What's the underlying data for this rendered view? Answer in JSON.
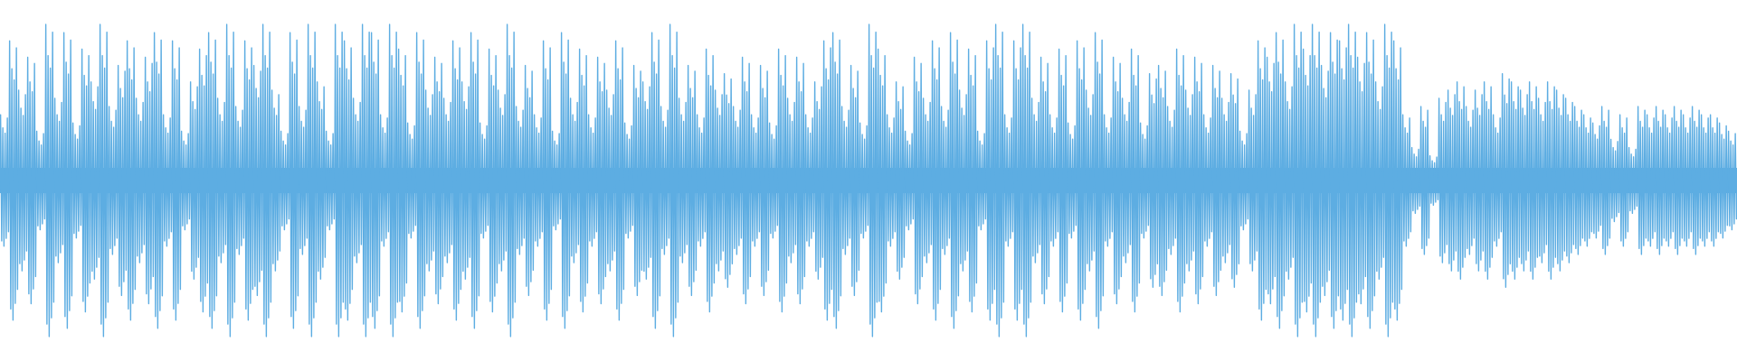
{
  "chart_data": {
    "type": "waveform",
    "color": "#5dade2",
    "values": [
      0.4,
      0.85,
      0.55,
      0.75,
      0.3,
      0.95,
      0.5,
      0.9,
      0.35,
      0.8,
      0.6,
      0.95,
      0.45,
      0.7,
      0.85,
      0.5,
      0.75,
      0.9,
      0.4,
      0.85,
      0.3,
      0.6,
      0.8,
      0.9,
      0.5,
      0.95,
      0.45,
      0.85,
      0.7,
      0.95,
      0.55,
      0.3,
      0.9,
      0.45,
      0.95,
      0.6,
      0.3,
      0.95,
      0.85,
      0.5,
      0.95,
      0.9,
      0.4,
      0.95,
      0.8,
      0.35,
      0.9,
      0.55,
      0.75,
      0.5,
      0.85,
      0.6,
      0.9,
      0.35,
      0.8,
      0.55,
      0.95,
      0.45,
      0.7,
      0.4,
      0.85,
      0.3,
      0.9,
      0.5,
      0.8,
      0.4,
      0.75,
      0.55,
      0.85,
      0.35,
      0.7,
      0.6,
      0.9,
      0.45,
      0.95,
      0.5,
      0.7,
      0.4,
      0.8,
      0.55,
      0.65,
      0.45,
      0.75,
      0.4,
      0.7,
      0.35,
      0.8,
      0.5,
      0.75,
      0.4,
      0.6,
      0.85,
      0.9,
      0.45,
      0.7,
      0.35,
      0.95,
      0.8,
      0.4,
      0.6,
      0.3,
      0.75,
      0.5,
      0.85,
      0.45,
      0.9,
      0.55,
      0.8,
      0.3,
      0.85,
      0.95,
      0.4,
      0.85,
      0.95,
      0.5,
      0.75,
      0.4,
      0.8,
      0.35,
      0.85,
      0.55,
      0.9,
      0.4,
      0.75,
      0.5,
      0.8,
      0.35,
      0.65,
      0.7,
      0.45,
      0.8,
      0.55,
      0.75,
      0.4,
      0.7,
      0.5,
      0.65,
      0.3,
      0.55,
      0.85,
      0.75,
      0.9,
      0.6,
      0.95,
      0.8,
      0.95,
      0.7,
      0.9,
      0.85,
      0.95,
      0.75,
      0.9,
      0.6,
      0.95,
      0.85,
      0.4,
      0.2,
      0.45,
      0.15,
      0.5,
      0.55,
      0.6,
      0.45,
      0.55,
      0.6,
      0.4,
      0.65,
      0.6,
      0.55,
      0.6,
      0.5,
      0.6,
      0.55,
      0.5,
      0.45,
      0.4,
      0.35,
      0.45,
      0.25,
      0.4,
      0.2,
      0.45,
      0.4,
      0.45,
      0.4,
      0.45,
      0.4,
      0.45,
      0.4,
      0.4,
      0.35,
      0.3
    ]
  }
}
